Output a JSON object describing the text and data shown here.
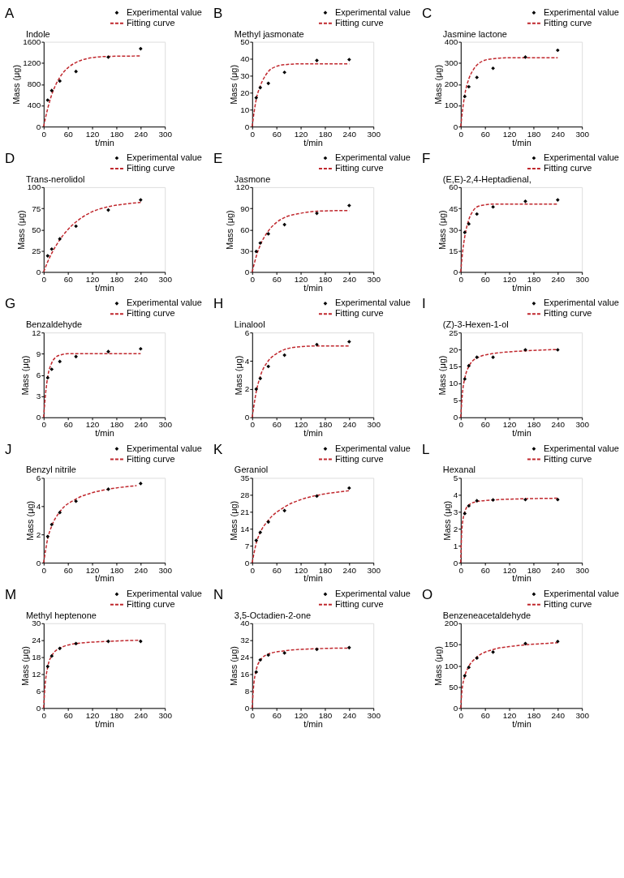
{
  "chart_data": [
    {
      "type": "scatter",
      "title": "Indole",
      "annotations": [
        "A"
      ],
      "xlabel": "t/min",
      "ylabel": "Mass (μg)",
      "xlim": [
        0,
        300
      ],
      "xticks": [
        0,
        60,
        120,
        180,
        240,
        300
      ],
      "ylim": [
        0,
        1600
      ],
      "yticks": [
        0,
        400,
        800,
        1200,
        1600
      ],
      "legend": "top right",
      "series": [
        {
          "name": "Experimental value",
          "marker": "diamond",
          "color": "#000000",
          "x": [
            10,
            20,
            40,
            80,
            160,
            240
          ],
          "values": [
            500,
            680,
            860,
            1040,
            1310,
            1470
          ]
        },
        {
          "name": "Fitting curve",
          "type": "line",
          "line_style": "dashed",
          "color": "#c0272d",
          "x": [
            0,
            5,
            10,
            20,
            30,
            40,
            60,
            80,
            120,
            160,
            200,
            240
          ],
          "values": [
            0,
            180,
            340,
            600,
            790,
            930,
            1110,
            1210,
            1300,
            1325,
            1330,
            1332
          ]
        }
      ]
    },
    {
      "type": "scatter",
      "title": "Methyl jasmonate",
      "annotations": [
        "B"
      ],
      "xlabel": "t/min",
      "ylabel": "Mass (μg)",
      "xlim": [
        0,
        300
      ],
      "xticks": [
        0,
        60,
        120,
        180,
        240,
        300
      ],
      "ylim": [
        0,
        50
      ],
      "yticks": [
        0,
        10,
        20,
        30,
        40,
        50
      ],
      "legend": "top right",
      "series": [
        {
          "name": "Experimental value",
          "marker": "diamond",
          "color": "#000000",
          "x": [
            10,
            20,
            40,
            80,
            160,
            240
          ],
          "values": [
            17,
            23,
            25.5,
            32,
            39,
            39.5
          ]
        },
        {
          "name": "Fitting curve",
          "type": "line",
          "line_style": "dashed",
          "color": "#c0272d",
          "x": [
            0,
            5,
            10,
            20,
            30,
            40,
            60,
            80,
            120,
            160,
            240
          ],
          "values": [
            0,
            9,
            16,
            24,
            29,
            32.5,
            35.5,
            36.5,
            37,
            37,
            37
          ]
        }
      ]
    },
    {
      "type": "scatter",
      "title": "Jasmine lactone",
      "annotations": [
        "C"
      ],
      "xlabel": "t/min",
      "ylabel": "Mass (μg)",
      "xlim": [
        0,
        300
      ],
      "xticks": [
        0,
        60,
        120,
        180,
        240,
        300
      ],
      "ylim": [
        0,
        400
      ],
      "yticks": [
        0,
        100,
        200,
        300,
        400
      ],
      "legend": "top right",
      "series": [
        {
          "name": "Experimental value",
          "marker": "diamond",
          "color": "#000000",
          "x": [
            10,
            20,
            40,
            80,
            160,
            240
          ],
          "values": [
            142,
            188,
            232,
            275,
            328,
            360
          ]
        },
        {
          "name": "Fitting curve",
          "type": "line",
          "line_style": "dashed",
          "color": "#c0272d",
          "x": [
            0,
            5,
            10,
            20,
            30,
            40,
            60,
            80,
            120,
            240
          ],
          "values": [
            0,
            85,
            150,
            225,
            265,
            290,
            313,
            320,
            325,
            325
          ]
        }
      ]
    },
    {
      "type": "scatter",
      "title": "Trans-nerolidol",
      "annotations": [
        "D"
      ],
      "xlabel": "t/min",
      "ylabel": "Mass (μg)",
      "xlim": [
        0,
        300
      ],
      "xticks": [
        0,
        60,
        120,
        180,
        240,
        300
      ],
      "ylim": [
        0,
        100
      ],
      "yticks": [
        0,
        25,
        50,
        75,
        100
      ],
      "legend": "top right",
      "series": [
        {
          "name": "Experimental value",
          "marker": "diamond",
          "color": "#000000",
          "x": [
            10,
            20,
            40,
            80,
            160,
            240
          ],
          "values": [
            19,
            27,
            39,
            54,
            73,
            85
          ]
        },
        {
          "name": "Fitting curve",
          "type": "line",
          "line_style": "dashed",
          "color": "#c0272d",
          "x": [
            0,
            10,
            20,
            40,
            60,
            80,
            120,
            160,
            200,
            240
          ],
          "values": [
            0,
            12,
            22,
            38,
            50,
            59,
            71,
            77,
            80,
            82
          ]
        }
      ]
    },
    {
      "type": "scatter",
      "title": "Jasmone",
      "annotations": [
        "E"
      ],
      "xlabel": "t/min",
      "ylabel": "Mass (μg)",
      "xlim": [
        0,
        300
      ],
      "xticks": [
        0,
        60,
        120,
        180,
        240,
        300
      ],
      "ylim": [
        0,
        120
      ],
      "yticks": [
        0,
        30,
        60,
        90,
        120
      ],
      "legend": "top right",
      "series": [
        {
          "name": "Experimental value",
          "marker": "diamond",
          "color": "#000000",
          "x": [
            10,
            20,
            40,
            80,
            160,
            240
          ],
          "values": [
            29,
            41,
            54,
            67,
            83,
            94
          ]
        },
        {
          "name": "Fitting curve",
          "type": "line",
          "line_style": "dashed",
          "color": "#c0272d",
          "x": [
            0,
            10,
            20,
            40,
            60,
            80,
            120,
            160,
            240
          ],
          "values": [
            0,
            22,
            38,
            58,
            70,
            77,
            83,
            86,
            87
          ]
        }
      ]
    },
    {
      "type": "scatter",
      "title": "(E,E)-2,4-Heptadienal,",
      "annotations": [
        "F"
      ],
      "xlabel": "t/min",
      "ylabel": "Mass (μg)",
      "xlim": [
        0,
        300
      ],
      "xticks": [
        0,
        60,
        120,
        180,
        240,
        300
      ],
      "ylim": [
        0,
        60
      ],
      "yticks": [
        0,
        15,
        30,
        45,
        60
      ],
      "legend": "top right",
      "series": [
        {
          "name": "Experimental value",
          "marker": "diamond",
          "color": "#000000",
          "x": [
            10,
            20,
            40,
            80,
            160,
            240
          ],
          "values": [
            28,
            34,
            41,
            46,
            50,
            51
          ]
        },
        {
          "name": "Fitting curve",
          "type": "line",
          "line_style": "dashed",
          "color": "#c0272d",
          "x": [
            0,
            5,
            10,
            20,
            30,
            40,
            60,
            80,
            240
          ],
          "values": [
            0,
            15,
            25,
            37,
            43,
            46,
            47.5,
            48,
            48
          ]
        }
      ]
    },
    {
      "type": "scatter",
      "title": "Benzaldehyde",
      "annotations": [
        "G"
      ],
      "xlabel": "t/min",
      "ylabel": "Mass (μg)",
      "xlim": [
        0,
        300
      ],
      "xticks": [
        0,
        60,
        120,
        180,
        240,
        300
      ],
      "ylim": [
        0,
        12
      ],
      "yticks": [
        0,
        3,
        6,
        9,
        12
      ],
      "legend": "top right",
      "series": [
        {
          "name": "Experimental value",
          "marker": "diamond",
          "color": "#000000",
          "x": [
            10,
            20,
            40,
            80,
            160,
            240
          ],
          "values": [
            5.6,
            6.8,
            7.9,
            8.6,
            9.3,
            9.7
          ]
        },
        {
          "name": "Fitting curve",
          "type": "line",
          "line_style": "dashed",
          "color": "#c0272d",
          "x": [
            0,
            5,
            10,
            20,
            30,
            40,
            60,
            240
          ],
          "values": [
            0,
            3.5,
            5.7,
            7.7,
            8.5,
            8.8,
            9,
            9
          ]
        }
      ]
    },
    {
      "type": "scatter",
      "title": "Linalool",
      "annotations": [
        "H"
      ],
      "xlabel": "t/min",
      "ylabel": "Mass (μg)",
      "xlim": [
        0,
        300
      ],
      "xticks": [
        0,
        60,
        120,
        180,
        240,
        300
      ],
      "ylim": [
        0,
        6
      ],
      "yticks": [
        0,
        2,
        4,
        6
      ],
      "legend": "top right",
      "series": [
        {
          "name": "Experimental value",
          "marker": "diamond",
          "color": "#000000",
          "x": [
            10,
            20,
            40,
            80,
            160,
            240
          ],
          "values": [
            2.0,
            2.75,
            3.6,
            4.4,
            5.15,
            5.35
          ]
        },
        {
          "name": "Fitting curve",
          "type": "line",
          "line_style": "dashed",
          "color": "#c0272d",
          "x": [
            0,
            10,
            20,
            40,
            60,
            80,
            120,
            160,
            240
          ],
          "values": [
            0,
            1.8,
            2.9,
            4.0,
            4.5,
            4.8,
            5.0,
            5.05,
            5.05
          ]
        }
      ]
    },
    {
      "type": "scatter",
      "title": "(Z)-3-Hexen-1-ol",
      "annotations": [
        "I"
      ],
      "xlabel": "t/min",
      "ylabel": "Mass (μg)",
      "xlim": [
        0,
        300
      ],
      "xticks": [
        0,
        60,
        120,
        180,
        240,
        300
      ],
      "ylim": [
        0,
        25
      ],
      "yticks": [
        0,
        5,
        10,
        15,
        20,
        25
      ],
      "legend": "top right",
      "series": [
        {
          "name": "Experimental value",
          "marker": "diamond",
          "color": "#000000",
          "x": [
            10,
            20,
            40,
            80,
            160,
            240
          ],
          "values": [
            11.3,
            15.2,
            17.7,
            17.7,
            19.9,
            19.9
          ]
        },
        {
          "name": "Fitting curve",
          "type": "line",
          "line_style": "dashed",
          "color": "#c0272d",
          "x": [
            0,
            5,
            10,
            20,
            40,
            80,
            120,
            160,
            240
          ],
          "values": [
            0,
            8,
            11.5,
            15,
            17.5,
            18.8,
            19.3,
            19.6,
            20
          ]
        }
      ]
    },
    {
      "type": "scatter",
      "title": "Benzyl nitrile",
      "annotations": [
        "J"
      ],
      "xlabel": "t/min",
      "ylabel": "Mass (μg)",
      "xlim": [
        0,
        300
      ],
      "xticks": [
        0,
        60,
        120,
        180,
        240,
        300
      ],
      "ylim": [
        0,
        6
      ],
      "yticks": [
        0,
        2,
        4,
        6
      ],
      "legend": "top right",
      "series": [
        {
          "name": "Experimental value",
          "marker": "diamond",
          "color": "#000000",
          "x": [
            10,
            20,
            40,
            80,
            160,
            240
          ],
          "values": [
            1.85,
            2.7,
            3.55,
            4.35,
            5.2,
            5.6
          ]
        },
        {
          "name": "Fitting curve",
          "type": "line",
          "line_style": "dashed",
          "color": "#c0272d",
          "x": [
            0,
            10,
            20,
            40,
            80,
            120,
            160,
            230
          ],
          "values": [
            0,
            1.7,
            2.6,
            3.6,
            4.5,
            4.95,
            5.2,
            5.45
          ]
        }
      ]
    },
    {
      "type": "scatter",
      "title": "Geraniol",
      "annotations": [
        "K"
      ],
      "xlabel": "t/min",
      "ylabel": "Mass (μg)",
      "xlim": [
        0,
        300
      ],
      "xticks": [
        0,
        60,
        120,
        180,
        240,
        300
      ],
      "ylim": [
        0,
        35
      ],
      "yticks": [
        0,
        7,
        14,
        21,
        28,
        35
      ],
      "legend": "top right",
      "series": [
        {
          "name": "Experimental value",
          "marker": "diamond",
          "color": "#000000",
          "x": [
            10,
            20,
            40,
            80,
            160,
            240
          ],
          "values": [
            9.2,
            12.5,
            16.8,
            21.5,
            27.5,
            30.8
          ]
        },
        {
          "name": "Fitting curve",
          "type": "line",
          "line_style": "dashed",
          "color": "#c0272d",
          "x": [
            0,
            10,
            20,
            40,
            80,
            120,
            160,
            200,
            240
          ],
          "values": [
            0,
            8,
            12.5,
            17.5,
            23,
            26,
            27.8,
            28.9,
            29.7
          ]
        }
      ]
    },
    {
      "type": "scatter",
      "title": "Hexanal",
      "annotations": [
        "L"
      ],
      "xlabel": "t/min",
      "ylabel": "Mass (μg)",
      "xlim": [
        0,
        300
      ],
      "xticks": [
        0,
        60,
        120,
        180,
        240,
        300
      ],
      "ylim": [
        0,
        5
      ],
      "yticks": [
        0,
        1,
        2,
        3,
        4,
        5
      ],
      "legend": "top right",
      "series": [
        {
          "name": "Experimental value",
          "marker": "diamond",
          "color": "#000000",
          "x": [
            10,
            20,
            40,
            80,
            160,
            240
          ],
          "values": [
            2.9,
            3.35,
            3.65,
            3.7,
            3.72,
            3.72
          ]
        },
        {
          "name": "Fitting curve",
          "type": "line",
          "line_style": "dashed",
          "color": "#c0272d",
          "x": [
            0,
            3,
            10,
            20,
            40,
            80,
            160,
            240
          ],
          "values": [
            0,
            2,
            3.0,
            3.4,
            3.6,
            3.7,
            3.77,
            3.8
          ]
        }
      ]
    },
    {
      "type": "scatter",
      "title": "Methyl heptenone",
      "annotations": [
        "M"
      ],
      "xlabel": "t/min",
      "ylabel": "Mass (μg)",
      "xlim": [
        0,
        300
      ],
      "xticks": [
        0,
        60,
        120,
        180,
        240,
        300
      ],
      "ylim": [
        0,
        30
      ],
      "yticks": [
        0,
        6,
        12,
        18,
        24,
        30
      ],
      "legend": "top right",
      "series": [
        {
          "name": "Experimental value",
          "marker": "diamond",
          "color": "#000000",
          "x": [
            10,
            20,
            40,
            80,
            160,
            240
          ],
          "values": [
            14.7,
            18.4,
            21.1,
            22.8,
            23.6,
            23.6
          ]
        },
        {
          "name": "Fitting curve",
          "type": "line",
          "line_style": "dashed",
          "color": "#c0272d",
          "x": [
            0,
            3,
            10,
            20,
            40,
            80,
            160,
            240
          ],
          "values": [
            0,
            7,
            14.5,
            18.5,
            21.2,
            22.8,
            23.6,
            24
          ]
        }
      ]
    },
    {
      "type": "scatter",
      "title": "3,5-Octadien-2-one",
      "annotations": [
        "N"
      ],
      "xlabel": "t/min",
      "ylabel": "Mass (μg)",
      "xlim": [
        0,
        300
      ],
      "xticks": [
        0,
        60,
        120,
        180,
        240,
        300
      ],
      "ylim": [
        0,
        40
      ],
      "yticks": [
        0,
        8,
        16,
        24,
        32,
        40
      ],
      "legend": "top right",
      "series": [
        {
          "name": "Experimental value",
          "marker": "diamond",
          "color": "#000000",
          "x": [
            10,
            20,
            40,
            80,
            160,
            240
          ],
          "values": [
            17,
            22.7,
            25,
            26,
            27.7,
            28.5
          ]
        },
        {
          "name": "Fitting curve",
          "type": "line",
          "line_style": "dashed",
          "color": "#c0272d",
          "x": [
            0,
            3,
            10,
            20,
            40,
            80,
            160,
            240
          ],
          "values": [
            0,
            9,
            18,
            22.5,
            25.5,
            27,
            28,
            28.3
          ]
        }
      ]
    },
    {
      "type": "scatter",
      "title": "Benzeneacetaldehyde",
      "annotations": [
        "O"
      ],
      "xlabel": "t/min",
      "ylabel": "Mass (μg)",
      "xlim": [
        0,
        300
      ],
      "xticks": [
        0,
        60,
        120,
        180,
        240,
        300
      ],
      "ylim": [
        0,
        200
      ],
      "yticks": [
        0,
        50,
        100,
        150,
        200
      ],
      "legend": "top right",
      "series": [
        {
          "name": "Experimental value",
          "marker": "diamond",
          "color": "#000000",
          "x": [
            10,
            20,
            40,
            80,
            160,
            240
          ],
          "values": [
            76,
            96,
            118,
            132,
            152,
            157
          ]
        },
        {
          "name": "Fitting curve",
          "type": "line",
          "line_style": "dashed",
          "color": "#c0272d",
          "x": [
            0,
            3,
            10,
            20,
            40,
            80,
            120,
            160,
            240
          ],
          "values": [
            0,
            40,
            75,
            98,
            120,
            138,
            145,
            149,
            154
          ]
        }
      ]
    }
  ]
}
